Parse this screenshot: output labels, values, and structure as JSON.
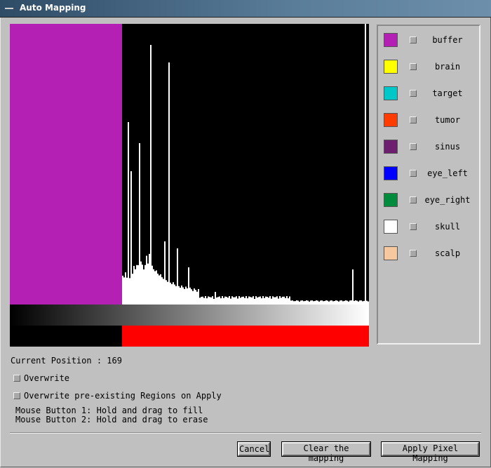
{
  "window": {
    "title": "Auto Mapping"
  },
  "histogram": {
    "mapped_range": [
      0,
      79
    ],
    "levels": 256,
    "colors": {
      "background": "#000000",
      "bars": "#ffffff",
      "mapped": "#b41fb4"
    }
  },
  "mapping_bar": {
    "colors": {
      "unmapped": "#000000",
      "mapped": "#ff0000"
    },
    "mapped_from_level": 80
  },
  "legend": {
    "items": [
      {
        "label": "buffer",
        "color": "#b41fb4"
      },
      {
        "label": "brain",
        "color": "#ffff00"
      },
      {
        "label": "target",
        "color": "#00c8c8"
      },
      {
        "label": "tumor",
        "color": "#ff3c00"
      },
      {
        "label": "sinus",
        "color": "#6e1e6e"
      },
      {
        "label": "eye_left",
        "color": "#0000ff"
      },
      {
        "label": "eye_right",
        "color": "#008c3c"
      },
      {
        "label": "skull",
        "color": "#ffffff"
      },
      {
        "label": "scalp",
        "color": "#f5c8a0"
      }
    ]
  },
  "status": {
    "current_position": "Current Position : 169"
  },
  "options": {
    "overwrite_label": "Overwrite",
    "overwrite_regions_label": "Overwrite pre-existing Regions on Apply"
  },
  "instructions": {
    "line1": "Mouse Button 1: Hold and drag to fill",
    "line2": "Mouse Button 2: Hold and drag to erase"
  },
  "buttons": {
    "cancel": "Cancel",
    "clear": "Clear the mapping",
    "apply": "Apply Pixel Mapping"
  }
}
